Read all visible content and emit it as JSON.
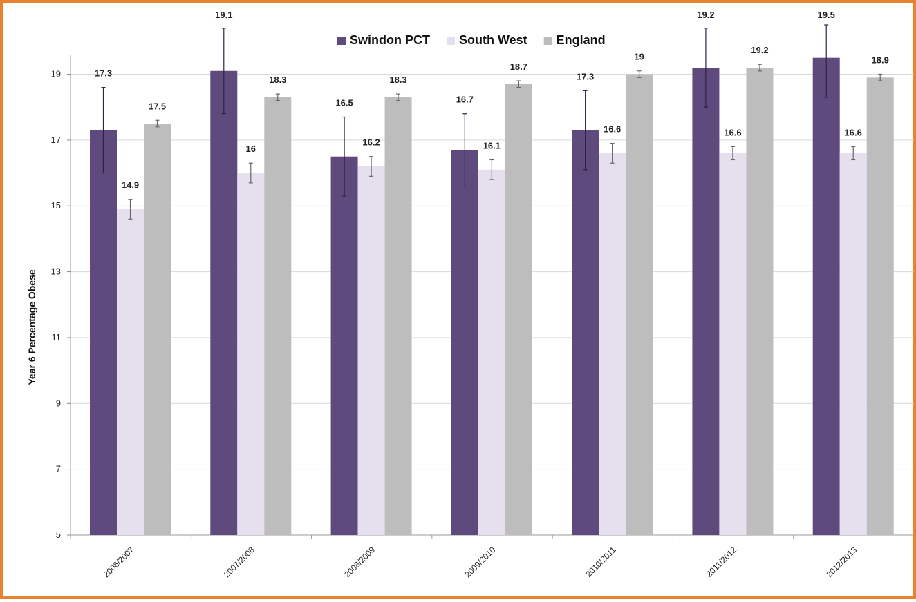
{
  "chart_data": {
    "type": "bar",
    "title": "",
    "xlabel": "",
    "ylabel": "Year 6 Percentage Obese",
    "ylim": [
      5,
      20.5
    ],
    "yticks": [
      5,
      7,
      9,
      11,
      13,
      15,
      17,
      19
    ],
    "grid": true,
    "legend_position": "top",
    "categories": [
      "2006/2007",
      "2007/2008",
      "2008/2009",
      "2009/2010",
      "2010/2011",
      "2011/2012",
      "2012/2013"
    ],
    "series": [
      {
        "name": "Swindon PCT",
        "color": "#5e4a7d",
        "values": [
          17.3,
          19.1,
          16.5,
          16.7,
          17.3,
          19.2,
          19.5
        ],
        "labels": [
          "17.3",
          "19.1",
          "16.5",
          "16.7",
          "17.3",
          "19.2",
          "19.5"
        ],
        "err_low": [
          16.0,
          17.8,
          15.3,
          15.6,
          16.1,
          18.0,
          18.3
        ],
        "err_high": [
          18.6,
          20.4,
          17.7,
          17.8,
          18.5,
          20.4,
          20.7
        ]
      },
      {
        "name": "South West",
        "color": "#e6e0ee",
        "values": [
          14.9,
          16.0,
          16.2,
          16.1,
          16.6,
          16.6,
          16.6
        ],
        "labels": [
          "14.9",
          "16",
          "16.2",
          "16.1",
          "16.6",
          "16.6",
          "16.6"
        ],
        "err_low": [
          14.6,
          15.7,
          15.9,
          15.8,
          16.3,
          16.4,
          16.4
        ],
        "err_high": [
          15.2,
          16.3,
          16.5,
          16.4,
          16.9,
          16.8,
          16.8
        ]
      },
      {
        "name": "England",
        "color": "#bdbdbd",
        "values": [
          17.5,
          18.3,
          18.3,
          18.7,
          19.0,
          19.2,
          18.9
        ],
        "labels": [
          "17.5",
          "18.3",
          "18.3",
          "18.7",
          "19",
          "19.2",
          "18.9"
        ],
        "err_low": [
          17.4,
          18.2,
          18.2,
          18.6,
          18.9,
          19.1,
          18.8
        ],
        "err_high": [
          17.6,
          18.4,
          18.4,
          18.8,
          19.1,
          19.3,
          19.0
        ]
      }
    ]
  }
}
